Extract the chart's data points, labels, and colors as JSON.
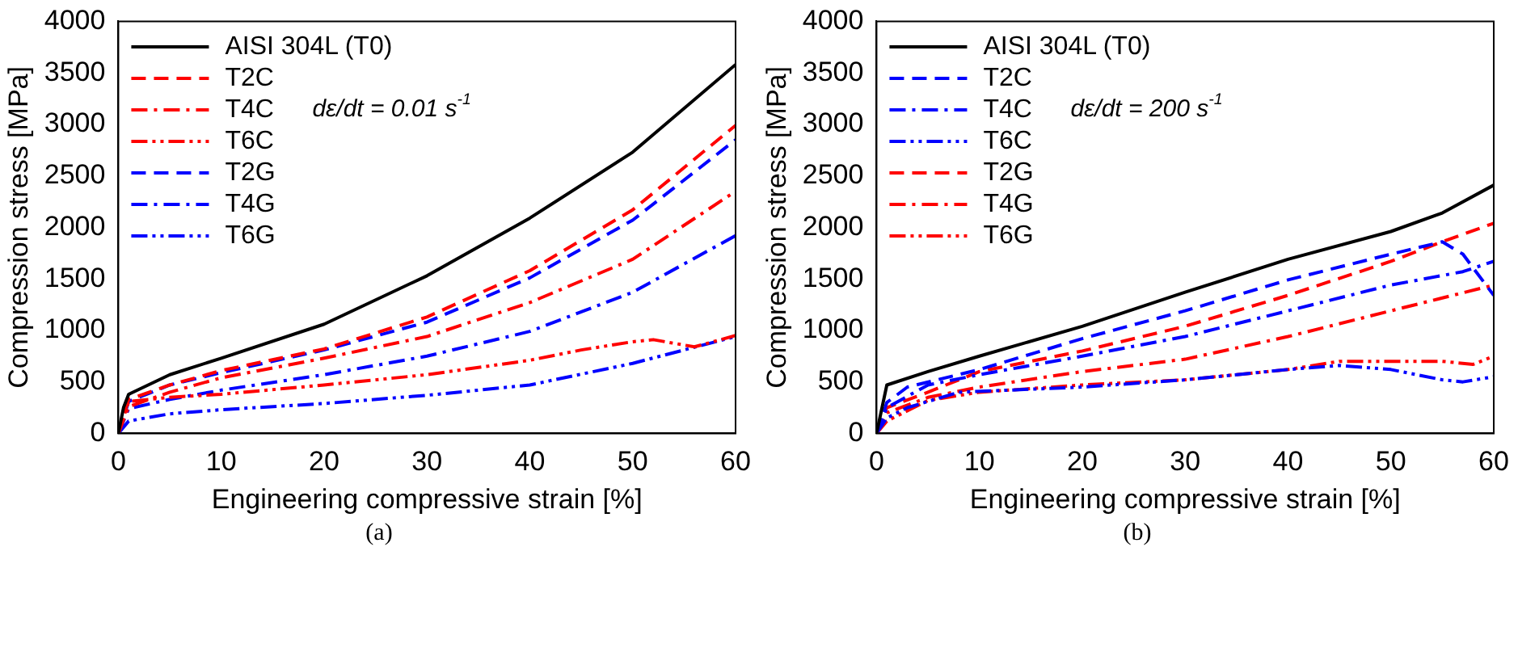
{
  "chart_data": [
    {
      "type": "line",
      "xlabel": "Engineering compressive strain [%]",
      "ylabel": "Compression stress [MPa]",
      "xlim": [
        0,
        60
      ],
      "xticks": [
        0,
        10,
        20,
        30,
        40,
        50,
        60
      ],
      "ylim": [
        0,
        4000
      ],
      "yticks": [
        0,
        500,
        1000,
        1500,
        2000,
        2500,
        3000,
        3500,
        4000
      ],
      "grid": false,
      "legend": "top left",
      "annotations": [
        "dε/dt = 0.01 s$^{-1}$",
        "(a)"
      ],
      "series": [
        {
          "name": "AISI 304L (T0)",
          "color": "#000000",
          "line_style": "solid",
          "x": [
            0,
            0.5,
            1,
            5,
            10,
            20,
            30,
            40,
            50,
            60
          ],
          "values": [
            0,
            250,
            380,
            570,
            730,
            1060,
            1530,
            2090,
            2730,
            3580
          ]
        },
        {
          "name": "T2C",
          "color": "#ff0000",
          "line_style": "dashed",
          "x": [
            0,
            1,
            5,
            10,
            20,
            30,
            40,
            50,
            60
          ],
          "values": [
            0,
            330,
            470,
            610,
            820,
            1130,
            1580,
            2170,
            2990
          ]
        },
        {
          "name": "T4C",
          "color": "#ff0000",
          "line_style": "dashdot",
          "x": [
            0,
            1,
            5,
            10,
            20,
            30,
            40,
            50,
            60
          ],
          "values": [
            0,
            260,
            400,
            540,
            730,
            940,
            1270,
            1690,
            2350
          ]
        },
        {
          "name": "T6C",
          "color": "#ff0000",
          "line_style": "dashdotdot",
          "x": [
            0,
            1,
            5,
            10,
            20,
            30,
            40,
            45,
            50,
            52,
            56,
            60
          ],
          "values": [
            0,
            310,
            350,
            380,
            470,
            570,
            710,
            810,
            890,
            910,
            840,
            950
          ]
        },
        {
          "name": "T2G",
          "color": "#0000ff",
          "line_style": "dashed",
          "x": [
            0,
            1,
            5,
            10,
            20,
            30,
            40,
            50,
            60
          ],
          "values": [
            0,
            310,
            470,
            590,
            810,
            1080,
            1510,
            2070,
            2850
          ]
        },
        {
          "name": "T4G",
          "color": "#0000ff",
          "line_style": "dashdot",
          "x": [
            0,
            1,
            5,
            10,
            20,
            30,
            40,
            50,
            60
          ],
          "values": [
            0,
            240,
            330,
            420,
            570,
            750,
            990,
            1370,
            1920
          ]
        },
        {
          "name": "T6G",
          "color": "#0000ff",
          "line_style": "dashdotdot",
          "x": [
            0,
            1,
            5,
            10,
            20,
            30,
            40,
            50,
            60
          ],
          "values": [
            0,
            120,
            190,
            230,
            290,
            370,
            470,
            680,
            940
          ]
        }
      ]
    },
    {
      "type": "line",
      "xlabel": "Engineering compressive strain [%]",
      "ylabel": "Compression stress [MPa]",
      "xlim": [
        0,
        60
      ],
      "xticks": [
        0,
        10,
        20,
        30,
        40,
        50,
        60
      ],
      "ylim": [
        0,
        4000
      ],
      "yticks": [
        0,
        500,
        1000,
        1500,
        2000,
        2500,
        3000,
        3500,
        4000
      ],
      "grid": false,
      "legend": "top left",
      "annotations": [
        "dε/dt = 200 s$^{-1}$",
        "(b)"
      ],
      "series": [
        {
          "name": "AISI 304L (T0)",
          "color": "#000000",
          "line_style": "solid",
          "x": [
            0,
            1,
            5,
            10,
            20,
            30,
            40,
            50,
            55,
            60
          ],
          "values": [
            0,
            470,
            600,
            750,
            1040,
            1370,
            1690,
            1960,
            2140,
            2410
          ]
        },
        {
          "name": "T2C",
          "color": "#0000ff",
          "line_style": "dashed",
          "x": [
            0,
            1,
            3,
            10,
            20,
            30,
            40,
            50,
            55,
            57,
            60
          ],
          "values": [
            0,
            300,
            450,
            620,
            920,
            1190,
            1490,
            1740,
            1860,
            1740,
            1340
          ]
        },
        {
          "name": "T4C",
          "color": "#0000ff",
          "line_style": "dashdot",
          "x": [
            0,
            1,
            5,
            10,
            20,
            30,
            40,
            50,
            57,
            60
          ],
          "values": [
            0,
            250,
            470,
            570,
            750,
            940,
            1190,
            1440,
            1570,
            1670
          ]
        },
        {
          "name": "T6C",
          "color": "#0000ff",
          "line_style": "dashdotdot",
          "x": [
            0,
            1,
            3,
            8,
            20,
            30,
            40,
            45,
            50,
            55,
            57,
            60
          ],
          "values": [
            0,
            150,
            250,
            400,
            450,
            520,
            620,
            660,
            620,
            520,
            500,
            550
          ]
        },
        {
          "name": "T2G",
          "color": "#ff0000",
          "line_style": "dashed",
          "x": [
            0,
            1,
            5,
            10,
            20,
            30,
            40,
            50,
            55,
            60
          ],
          "values": [
            0,
            250,
            400,
            600,
            800,
            1040,
            1340,
            1670,
            1860,
            2040
          ]
        },
        {
          "name": "T4G",
          "color": "#ff0000",
          "line_style": "dashdot",
          "x": [
            0,
            1,
            5,
            10,
            20,
            30,
            40,
            50,
            60
          ],
          "values": [
            0,
            200,
            350,
            450,
            600,
            720,
            940,
            1190,
            1440
          ]
        },
        {
          "name": "T6G",
          "color": "#ff0000",
          "line_style": "dashdotdot",
          "x": [
            0,
            1,
            5,
            10,
            20,
            30,
            40,
            45,
            50,
            55,
            58,
            60
          ],
          "values": [
            0,
            120,
            320,
            400,
            470,
            520,
            620,
            700,
            700,
            700,
            670,
            750
          ]
        }
      ]
    }
  ]
}
